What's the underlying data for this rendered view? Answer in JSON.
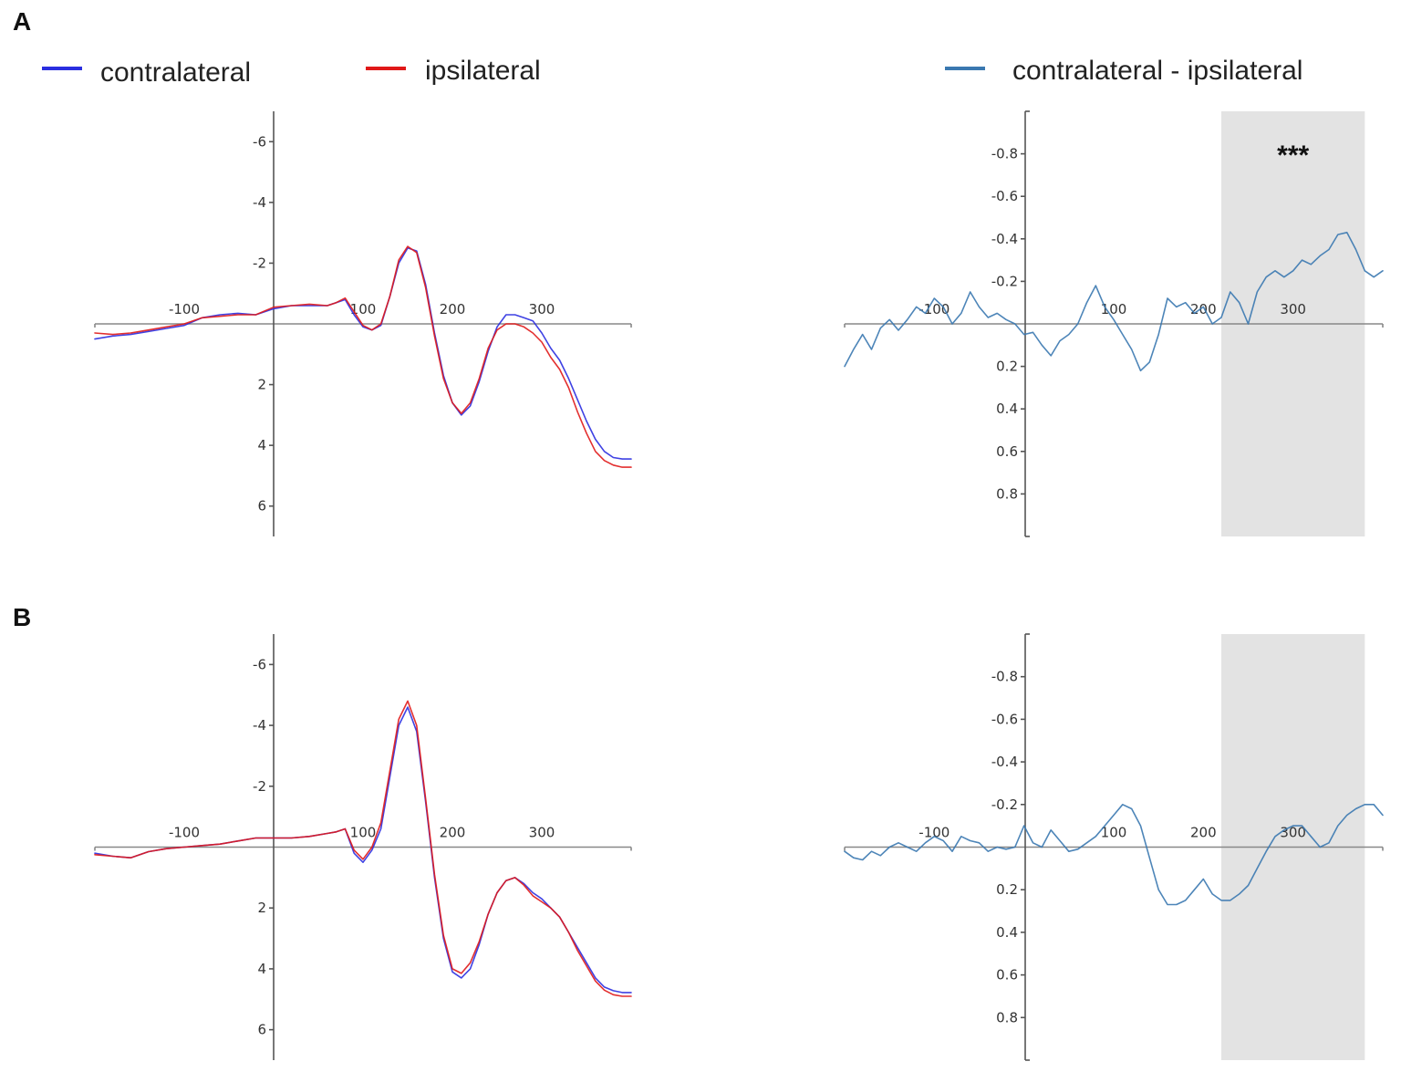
{
  "panels": {
    "A": "A",
    "B": "B"
  },
  "legend": {
    "contralateral": {
      "label": "contralateral",
      "color": "#2a2ee0"
    },
    "ipsilateral": {
      "label": "ipsilateral",
      "color": "#e01818"
    },
    "difference": {
      "label": "contralateral - ipsilateral",
      "color": "#3a78b0"
    }
  },
  "colors": {
    "shade": "#e3e3e3",
    "axis": "#555555"
  },
  "chart_data": [
    {
      "id": "A-erp",
      "panel": "A",
      "type": "line",
      "xlim": [
        -200,
        400
      ],
      "ylim": [
        -7,
        7
      ],
      "y_inverted": true,
      "x_ticks": [
        -100,
        100,
        200,
        300
      ],
      "y_ticks": [
        -6,
        -4,
        -2,
        2,
        4,
        6
      ],
      "series": [
        {
          "name": "contralateral",
          "color": "#2a2ee0",
          "x": [
            -200,
            -180,
            -160,
            -140,
            -120,
            -100,
            -80,
            -60,
            -40,
            -20,
            0,
            20,
            40,
            60,
            70,
            80,
            90,
            100,
            110,
            120,
            130,
            140,
            150,
            160,
            170,
            180,
            190,
            200,
            210,
            220,
            230,
            240,
            250,
            260,
            270,
            280,
            290,
            300,
            310,
            320,
            330,
            340,
            350,
            360,
            370,
            380,
            390,
            400
          ],
          "y": [
            0.5,
            0.4,
            0.35,
            0.25,
            0.15,
            0.05,
            -0.2,
            -0.3,
            -0.35,
            -0.3,
            -0.5,
            -0.6,
            -0.6,
            -0.6,
            -0.7,
            -0.8,
            -0.3,
            0.1,
            0.2,
            0.05,
            -0.9,
            -2.0,
            -2.5,
            -2.4,
            -1.3,
            0.3,
            1.7,
            2.6,
            3.0,
            2.7,
            1.9,
            0.9,
            0.1,
            -0.3,
            -0.3,
            -0.2,
            -0.1,
            0.3,
            0.8,
            1.2,
            1.8,
            2.5,
            3.2,
            3.8,
            4.2,
            4.4,
            4.45,
            4.45
          ]
        },
        {
          "name": "ipsilateral",
          "color": "#e01818",
          "x": [
            -200,
            -180,
            -160,
            -140,
            -120,
            -100,
            -80,
            -60,
            -40,
            -20,
            0,
            20,
            40,
            60,
            70,
            80,
            90,
            100,
            110,
            120,
            130,
            140,
            150,
            160,
            170,
            180,
            190,
            200,
            210,
            220,
            230,
            240,
            250,
            260,
            270,
            280,
            290,
            300,
            310,
            320,
            330,
            340,
            350,
            360,
            370,
            380,
            390,
            400
          ],
          "y": [
            0.3,
            0.35,
            0.3,
            0.2,
            0.1,
            0.0,
            -0.2,
            -0.25,
            -0.3,
            -0.3,
            -0.55,
            -0.6,
            -0.65,
            -0.6,
            -0.7,
            -0.85,
            -0.4,
            0.05,
            0.2,
            0.0,
            -0.9,
            -2.1,
            -2.55,
            -2.35,
            -1.2,
            0.4,
            1.8,
            2.6,
            2.95,
            2.6,
            1.8,
            0.8,
            0.2,
            0.0,
            0.0,
            0.1,
            0.3,
            0.6,
            1.1,
            1.5,
            2.1,
            2.9,
            3.6,
            4.2,
            4.5,
            4.65,
            4.72,
            4.72
          ]
        }
      ]
    },
    {
      "id": "A-diff",
      "panel": "A",
      "type": "line",
      "xlim": [
        -200,
        400
      ],
      "ylim": [
        -1,
        1
      ],
      "y_inverted": true,
      "x_ticks": [
        -100,
        100,
        200,
        300
      ],
      "y_ticks": [
        -0.8,
        -0.6,
        -0.4,
        -0.2,
        0.2,
        0.4,
        0.6,
        0.8
      ],
      "shaded_region": [
        220,
        380
      ],
      "annotation": "***",
      "series": [
        {
          "name": "contralateral - ipsilateral",
          "color": "#3a78b0",
          "x": [
            -200,
            -190,
            -180,
            -170,
            -160,
            -150,
            -140,
            -130,
            -120,
            -110,
            -100,
            -90,
            -80,
            -70,
            -60,
            -50,
            -40,
            -30,
            -20,
            -10,
            0,
            10,
            20,
            30,
            40,
            50,
            60,
            70,
            80,
            90,
            100,
            110,
            120,
            130,
            140,
            150,
            160,
            170,
            180,
            190,
            200,
            210,
            220,
            230,
            240,
            250,
            260,
            270,
            280,
            290,
            300,
            310,
            320,
            330,
            340,
            350,
            360,
            370,
            380,
            390,
            400
          ],
          "y": [
            0.2,
            0.12,
            0.05,
            0.12,
            0.02,
            -0.02,
            0.03,
            -0.02,
            -0.08,
            -0.05,
            -0.12,
            -0.08,
            0.0,
            -0.05,
            -0.15,
            -0.08,
            -0.03,
            -0.05,
            -0.02,
            0.0,
            0.05,
            0.04,
            0.1,
            0.15,
            0.08,
            0.05,
            0.0,
            -0.1,
            -0.18,
            -0.08,
            -0.02,
            0.05,
            0.12,
            0.22,
            0.18,
            0.05,
            -0.12,
            -0.08,
            -0.1,
            -0.05,
            -0.08,
            0.0,
            -0.03,
            -0.15,
            -0.1,
            0.0,
            -0.15,
            -0.22,
            -0.25,
            -0.22,
            -0.25,
            -0.3,
            -0.28,
            -0.32,
            -0.35,
            -0.42,
            -0.43,
            -0.35,
            -0.25,
            -0.22,
            -0.25
          ]
        }
      ]
    },
    {
      "id": "B-erp",
      "panel": "B",
      "type": "line",
      "xlim": [
        -200,
        400
      ],
      "ylim": [
        -7,
        7
      ],
      "y_inverted": true,
      "x_ticks": [
        -100,
        100,
        200,
        300
      ],
      "y_ticks": [
        -6,
        -4,
        -2,
        2,
        4,
        6
      ],
      "series": [
        {
          "name": "contralateral",
          "color": "#2a2ee0",
          "x": [
            -200,
            -180,
            -160,
            -140,
            -120,
            -100,
            -80,
            -60,
            -40,
            -20,
            0,
            20,
            40,
            60,
            70,
            80,
            90,
            100,
            110,
            120,
            130,
            140,
            150,
            160,
            170,
            180,
            190,
            200,
            210,
            220,
            230,
            240,
            250,
            260,
            270,
            280,
            290,
            300,
            310,
            320,
            330,
            340,
            350,
            360,
            370,
            380,
            390,
            400
          ],
          "y": [
            0.2,
            0.3,
            0.35,
            0.15,
            0.05,
            0.0,
            -0.05,
            -0.1,
            -0.2,
            -0.3,
            -0.3,
            -0.3,
            -0.35,
            -0.45,
            -0.5,
            -0.6,
            0.2,
            0.5,
            0.1,
            -0.6,
            -2.3,
            -4.0,
            -4.6,
            -3.8,
            -1.5,
            1.0,
            3.0,
            4.1,
            4.3,
            4.0,
            3.2,
            2.2,
            1.5,
            1.1,
            1.0,
            1.2,
            1.5,
            1.7,
            2.0,
            2.3,
            2.8,
            3.3,
            3.8,
            4.3,
            4.6,
            4.72,
            4.78,
            4.78
          ]
        },
        {
          "name": "ipsilateral",
          "color": "#e01818",
          "x": [
            -200,
            -180,
            -160,
            -140,
            -120,
            -100,
            -80,
            -60,
            -40,
            -20,
            0,
            20,
            40,
            60,
            70,
            80,
            90,
            100,
            110,
            120,
            130,
            140,
            150,
            160,
            170,
            180,
            190,
            200,
            210,
            220,
            230,
            240,
            250,
            260,
            270,
            280,
            290,
            300,
            310,
            320,
            330,
            340,
            350,
            360,
            370,
            380,
            390,
            400
          ],
          "y": [
            0.25,
            0.3,
            0.35,
            0.15,
            0.05,
            0.0,
            -0.05,
            -0.1,
            -0.2,
            -0.3,
            -0.3,
            -0.3,
            -0.35,
            -0.45,
            -0.5,
            -0.6,
            0.1,
            0.4,
            0.0,
            -0.8,
            -2.5,
            -4.2,
            -4.8,
            -4.0,
            -1.6,
            0.9,
            2.9,
            4.0,
            4.15,
            3.8,
            3.1,
            2.2,
            1.5,
            1.1,
            1.0,
            1.25,
            1.6,
            1.8,
            2.0,
            2.3,
            2.8,
            3.4,
            3.9,
            4.4,
            4.7,
            4.85,
            4.9,
            4.9
          ]
        }
      ]
    },
    {
      "id": "B-diff",
      "panel": "B",
      "type": "line",
      "xlim": [
        -200,
        400
      ],
      "ylim": [
        -1,
        1
      ],
      "y_inverted": true,
      "x_ticks": [
        -100,
        100,
        200,
        300
      ],
      "y_ticks": [
        -0.8,
        -0.6,
        -0.4,
        -0.2,
        0.2,
        0.4,
        0.6,
        0.8
      ],
      "shaded_region": [
        220,
        380
      ],
      "series": [
        {
          "name": "contralateral - ipsilateral",
          "color": "#3a78b0",
          "x": [
            -200,
            -190,
            -180,
            -170,
            -160,
            -150,
            -140,
            -130,
            -120,
            -110,
            -100,
            -90,
            -80,
            -70,
            -60,
            -50,
            -40,
            -30,
            -20,
            -10,
            0,
            10,
            20,
            30,
            40,
            50,
            60,
            70,
            80,
            90,
            100,
            110,
            120,
            130,
            140,
            150,
            160,
            170,
            180,
            190,
            200,
            210,
            220,
            230,
            240,
            250,
            260,
            270,
            280,
            290,
            300,
            310,
            320,
            330,
            340,
            350,
            360,
            370,
            380,
            390,
            400
          ],
          "y": [
            0.02,
            0.05,
            0.06,
            0.02,
            0.04,
            0.0,
            -0.02,
            0.0,
            0.02,
            -0.02,
            -0.05,
            -0.03,
            0.02,
            -0.05,
            -0.03,
            -0.02,
            0.02,
            0.0,
            0.01,
            0.0,
            -0.1,
            -0.02,
            0.0,
            -0.08,
            -0.03,
            0.02,
            0.01,
            -0.02,
            -0.05,
            -0.1,
            -0.15,
            -0.2,
            -0.18,
            -0.1,
            0.05,
            0.2,
            0.27,
            0.27,
            0.25,
            0.2,
            0.15,
            0.22,
            0.25,
            0.25,
            0.22,
            0.18,
            0.1,
            0.02,
            -0.05,
            -0.08,
            -0.1,
            -0.1,
            -0.05,
            0.0,
            -0.02,
            -0.1,
            -0.15,
            -0.18,
            -0.2,
            -0.2,
            -0.15
          ]
        }
      ]
    }
  ]
}
